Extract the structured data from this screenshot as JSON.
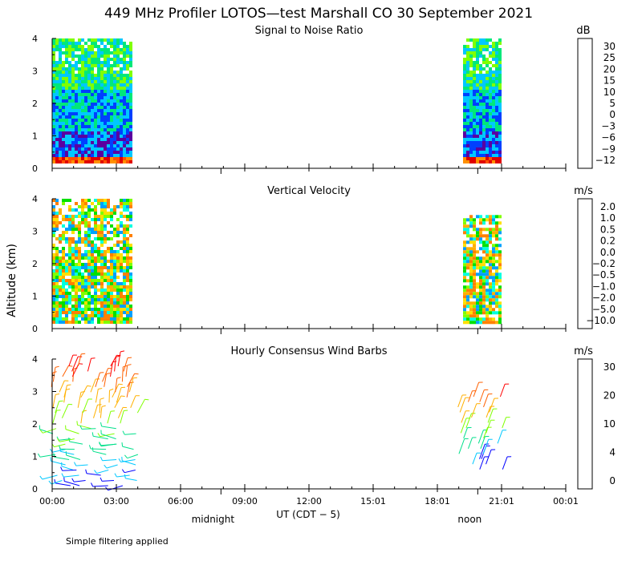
{
  "title": "449 MHz Profiler LOTOS—test Marshall CO 30 September 2021",
  "ylabel": "Altitude (km)",
  "xlabel": "UT  (CDT − 5)",
  "footnote": "Simple filtering applied",
  "x_ticks": [
    "00:00",
    "03:00",
    "06:00",
    "09:00",
    "12:00",
    "15:01",
    "18:01",
    "21:01",
    "00:01"
  ],
  "x_ticks_hours": [
    0,
    3,
    6,
    9,
    12,
    15,
    18,
    21,
    24
  ],
  "day_markers": [
    {
      "label": "midnight",
      "hour": 8.0
    },
    {
      "label": "noon",
      "hour": 20.0
    }
  ],
  "chart_data": [
    {
      "type": "heatmap",
      "title": "Signal to Noise Ratio",
      "unit": "dB",
      "ylim": [
        0,
        4
      ],
      "y_ticks": [
        0,
        1,
        2,
        3,
        4
      ],
      "xlim": [
        0,
        24
      ],
      "colorbar": {
        "labels": [
          "30",
          "25",
          "20",
          "15",
          "10",
          "5",
          "0",
          "−3",
          "−6",
          "−9",
          "−12"
        ],
        "colors": [
          "#ffffff",
          "#ffff00",
          "#ffc000",
          "#ff9000",
          "#ff5000",
          "#e00000",
          "#500050",
          "#5a00a0",
          "#0040ff",
          "#00c8ff",
          "#00e87a",
          "#80ff00"
        ]
      },
      "data_blocks": [
        {
          "x_start": 0.0,
          "x_end": 3.7,
          "alt_start": 0.2,
          "alt_end": 4.0
        },
        {
          "x_start": 19.2,
          "x_end": 21.0,
          "alt_start": 0.2,
          "alt_end": 4.0
        }
      ]
    },
    {
      "type": "heatmap",
      "title": "Vertical Velocity",
      "unit": "m/s",
      "ylim": [
        0,
        4
      ],
      "y_ticks": [
        0,
        1,
        2,
        3,
        4
      ],
      "xlim": [
        0,
        24
      ],
      "colorbar": {
        "labels": [
          "2.0",
          "1.0",
          "0.5",
          "0.2",
          "0.0",
          "−0.2",
          "−0.5",
          "−1.0",
          "−2.0",
          "−5.0",
          "−10.0"
        ],
        "colors": [
          "#ff0000",
          "#ff5000",
          "#ff8000",
          "#ffb000",
          "#ffe000",
          "#80ff00",
          "#00e000",
          "#00ffe0",
          "#00a0ff",
          "#0030ff",
          "#3000a0",
          "#300040"
        ]
      },
      "data_blocks": [
        {
          "x_start": 0.0,
          "x_end": 3.7,
          "alt_start": 0.2,
          "alt_end": 4.0
        },
        {
          "x_start": 19.2,
          "x_end": 21.0,
          "alt_start": 0.2,
          "alt_end": 3.5
        }
      ]
    },
    {
      "type": "scatter",
      "title": "Hourly Consensus Wind Barbs",
      "unit": "m/s",
      "ylim": [
        0,
        4
      ],
      "y_ticks": [
        0,
        1,
        2,
        3,
        4
      ],
      "xlim": [
        0,
        24
      ],
      "colorbar": {
        "labels": [
          "30",
          "20",
          "10",
          "4",
          "0"
        ],
        "colors": [
          "#ff0000",
          "#ff6000",
          "#ffb000",
          "#80ff00",
          "#00e08a",
          "#00c8ff",
          "#0000ff",
          "#400080"
        ]
      },
      "barb_columns_hours": [
        0.5,
        1.5,
        2.5,
        3.5,
        19.5,
        20.5
      ]
    }
  ]
}
